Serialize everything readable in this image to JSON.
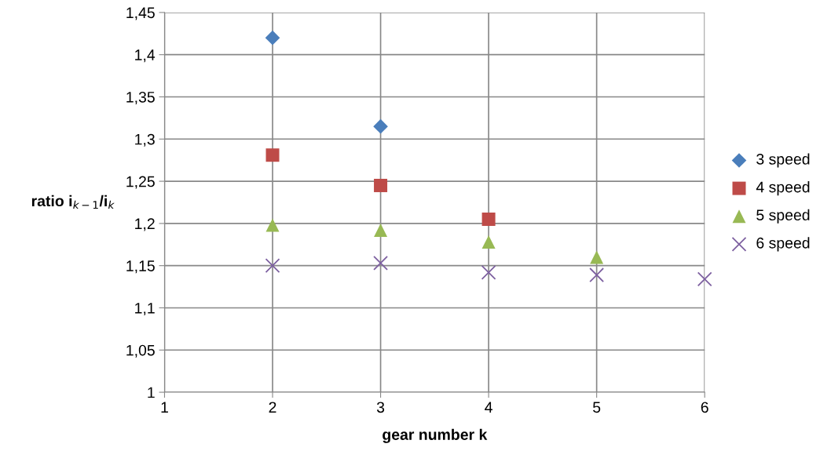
{
  "chart_data": {
    "type": "scatter",
    "xlabel": "gear number k",
    "ylabel": "ratio i$_{k−1}$/i$_{k}$",
    "series": [
      {
        "name": "3 speed",
        "color": "#4a7ebb",
        "marker": "diamond",
        "x": [
          2,
          3
        ],
        "values": [
          1.42,
          1.315
        ]
      },
      {
        "name": "4 speed",
        "color": "#be4b48",
        "marker": "square",
        "x": [
          2,
          3,
          4
        ],
        "values": [
          1.281,
          1.245,
          1.205
        ]
      },
      {
        "name": "5 speed",
        "color": "#98b954",
        "marker": "triangle",
        "x": [
          2,
          3,
          4,
          5
        ],
        "values": [
          1.198,
          1.192,
          1.178,
          1.16
        ]
      },
      {
        "name": "6 speed",
        "color": "#7d60a0",
        "marker": "cross",
        "x": [
          2,
          3,
          4,
          5,
          6
        ],
        "values": [
          1.15,
          1.153,
          1.142,
          1.139,
          1.134
        ]
      }
    ],
    "xlim": [
      1,
      6
    ],
    "xticks": [
      1,
      2,
      3,
      4,
      5,
      6
    ],
    "ylim": [
      1,
      1.45
    ],
    "yticks": [
      1,
      {
        "value": 1.05,
        "label": "1,05"
      },
      {
        "value": 1.1,
        "label": "1,1"
      },
      {
        "value": 1.15,
        "label": "1,15"
      },
      {
        "value": 1.2,
        "label": "1,2"
      },
      {
        "value": 1.25,
        "label": "1,25"
      },
      {
        "value": 1.3,
        "label": "1,3"
      },
      {
        "value": 1.35,
        "label": "1,35"
      },
      {
        "value": 1.4,
        "label": "1,4"
      },
      {
        "value": 1.45,
        "label": "1,45"
      }
    ],
    "grid": true,
    "legend": "right"
  }
}
